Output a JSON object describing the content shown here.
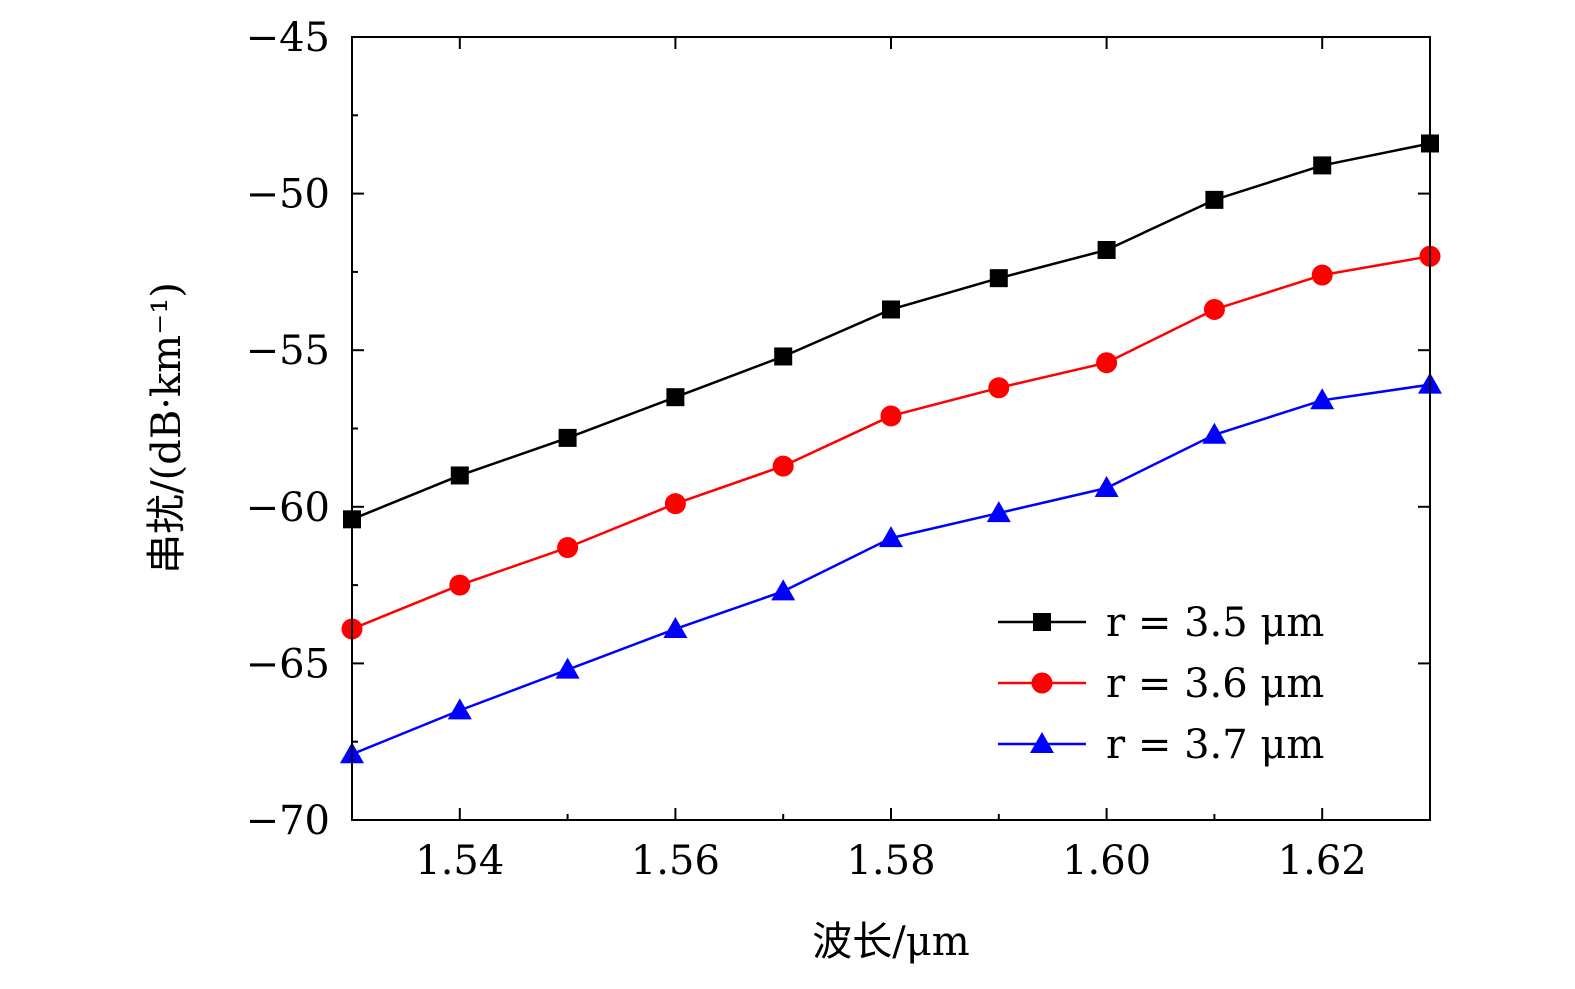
{
  "chart_data": {
    "type": "line",
    "title": "",
    "xlabel": "波长/μm",
    "ylabel": "串扰/(dB·km⁻¹)",
    "xlim": [
      1.53,
      1.63
    ],
    "ylim": [
      -70,
      -45
    ],
    "x_ticks": [
      1.54,
      1.56,
      1.58,
      1.6,
      1.62
    ],
    "x_tick_labels": [
      "1.54",
      "1.56",
      "1.58",
      "1.60",
      "1.62"
    ],
    "y_ticks": [
      -45,
      -50,
      -55,
      -60,
      -65,
      -70
    ],
    "y_tick_labels": [
      "−45",
      "−50",
      "−55",
      "−60",
      "−65",
      "−70"
    ],
    "grid": false,
    "legend_position": "bottom-right",
    "x": [
      1.53,
      1.54,
      1.55,
      1.56,
      1.57,
      1.58,
      1.59,
      1.6,
      1.61,
      1.62,
      1.63
    ],
    "series": [
      {
        "name": "r = 3.5 μm",
        "color": "#000000",
        "marker": "square",
        "values": [
          -60.4,
          -59.0,
          -57.8,
          -56.5,
          -55.2,
          -53.7,
          -52.7,
          -51.8,
          -50.2,
          -49.1,
          -48.4
        ]
      },
      {
        "name": "r = 3.6 μm",
        "color": "#ff0000",
        "marker": "circle",
        "values": [
          -63.9,
          -62.5,
          -61.3,
          -59.9,
          -58.7,
          -57.1,
          -56.2,
          -55.4,
          -53.7,
          -52.6,
          -52.0
        ]
      },
      {
        "name": "r = 3.7 μm",
        "color": "#0000ff",
        "marker": "triangle",
        "values": [
          -67.9,
          -66.5,
          -65.2,
          -63.9,
          -62.7,
          -61.0,
          -60.2,
          -59.4,
          -57.7,
          -56.6,
          -56.1
        ]
      }
    ]
  }
}
